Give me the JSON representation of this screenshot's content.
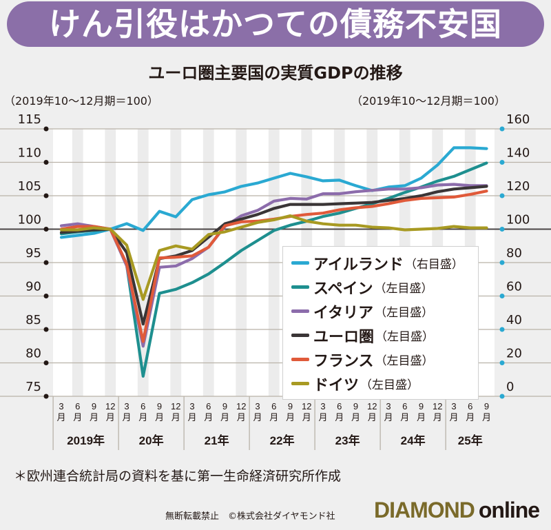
{
  "banner": {
    "title": "けん引役はかつての債務不安国"
  },
  "chart_data": {
    "type": "line",
    "title": "ユーロ圏主要国の実質GDPの推移",
    "left_axis_label": "（2019年10～12月期＝100）",
    "right_axis_label": "（2019年10～12月期＝100）",
    "left_ylim": [
      75,
      115
    ],
    "right_ylim": [
      0,
      160
    ],
    "left_ticks": [
      "115",
      "110",
      "105",
      "100",
      "95",
      "90",
      "85",
      "80",
      "75"
    ],
    "right_ticks": [
      "160",
      "140",
      "120",
      "100",
      "80",
      "60",
      "40",
      "20",
      "0"
    ],
    "x_month_labels": [
      "3",
      "6",
      "9",
      "12",
      "3",
      "6",
      "9",
      "12",
      "3",
      "6",
      "9",
      "12",
      "3",
      "6",
      "9",
      "12",
      "3",
      "6",
      "9",
      "12",
      "3",
      "6",
      "9",
      "12",
      "3",
      "6",
      "9"
    ],
    "month_suffix": "月",
    "year_groups": [
      {
        "label": "2019年",
        "count": 4
      },
      {
        "label": "20年",
        "count": 4
      },
      {
        "label": "21年",
        "count": 4
      },
      {
        "label": "22年",
        "count": 4
      },
      {
        "label": "23年",
        "count": 4
      },
      {
        "label": "24年",
        "count": 4
      },
      {
        "label": "25年",
        "count": 3
      }
    ],
    "grid": true,
    "series": [
      {
        "name": "アイルランド",
        "axis_note": "（右目盛）",
        "axis": "right",
        "color": "#2aa9d2",
        "values": [
          95.1,
          96.3,
          97.5,
          100,
          103.3,
          99.2,
          110.7,
          107.4,
          117.7,
          120.6,
          122.3,
          125.6,
          127.6,
          130.5,
          133.4,
          131.3,
          128.9,
          129.3,
          126.0,
          123.1,
          125.2,
          126.0,
          130.5,
          138.4,
          148.7,
          148.7,
          148.2
        ]
      },
      {
        "name": "スペイン",
        "axis_note": "（左目盛）",
        "axis": "left",
        "color": "#1e8f8f",
        "values": [
          99.3,
          99.6,
          99.8,
          100,
          94.6,
          78.0,
          90.4,
          91.0,
          92.0,
          93.3,
          95.0,
          96.8,
          98.3,
          99.8,
          100.6,
          101.2,
          101.9,
          102.4,
          103.1,
          103.8,
          104.6,
          105.5,
          106.3,
          107.2,
          107.9,
          108.9,
          109.9
        ]
      },
      {
        "name": "イタリア",
        "axis_note": "（左目盛）",
        "axis": "left",
        "color": "#8c6cab",
        "values": [
          100.5,
          100.8,
          100.4,
          100,
          94.5,
          82.5,
          94.3,
          94.5,
          95.6,
          97.3,
          100.4,
          102.0,
          102.8,
          104.2,
          104.6,
          104.5,
          105.3,
          105.3,
          105.6,
          105.8,
          106.0,
          106.0,
          106.2,
          106.6,
          106.7,
          106.5,
          106.5
        ]
      },
      {
        "name": "ユーロ圏",
        "axis_note": "（左目盛）",
        "axis": "left",
        "color": "#3a3536",
        "values": [
          99.5,
          99.7,
          99.9,
          100,
          96.5,
          85.8,
          95.6,
          96.0,
          96.8,
          98.8,
          100.8,
          101.5,
          102.2,
          103.1,
          103.7,
          103.7,
          103.7,
          103.8,
          103.9,
          104.0,
          104.3,
          104.6,
          105.0,
          105.6,
          106.0,
          106.2,
          106.4
        ]
      },
      {
        "name": "フランス",
        "axis_note": "（左目盛）",
        "axis": "left",
        "color": "#e05a3a",
        "values": [
          100.0,
          100.4,
          100.4,
          100,
          94.8,
          83.2,
          95.7,
          95.8,
          96.0,
          97.3,
          100.5,
          101.1,
          101.2,
          101.5,
          101.9,
          102.2,
          102.4,
          102.9,
          103.2,
          103.4,
          103.8,
          104.3,
          104.6,
          104.7,
          104.8,
          105.2,
          105.7
        ]
      },
      {
        "name": "ドイツ",
        "axis_note": "（左目盛）",
        "axis": "left",
        "color": "#a89a22",
        "values": [
          99.9,
          99.9,
          100.2,
          100,
          97.6,
          89.5,
          96.8,
          97.5,
          97.0,
          99.2,
          99.6,
          100.3,
          101.0,
          101.4,
          102.0,
          101.2,
          100.8,
          100.6,
          100.6,
          100.3,
          100.2,
          99.9,
          100.0,
          100.1,
          100.4,
          100.2,
          100.2
        ]
      }
    ]
  },
  "footer": {
    "source": "＊欧州連合統計局の資料を基に第一生命経済研究所作成",
    "credit": "無断転載禁止　©株式会社ダイヤモンド社",
    "logo_main": "DIAMOND",
    "logo_sub": "online"
  }
}
